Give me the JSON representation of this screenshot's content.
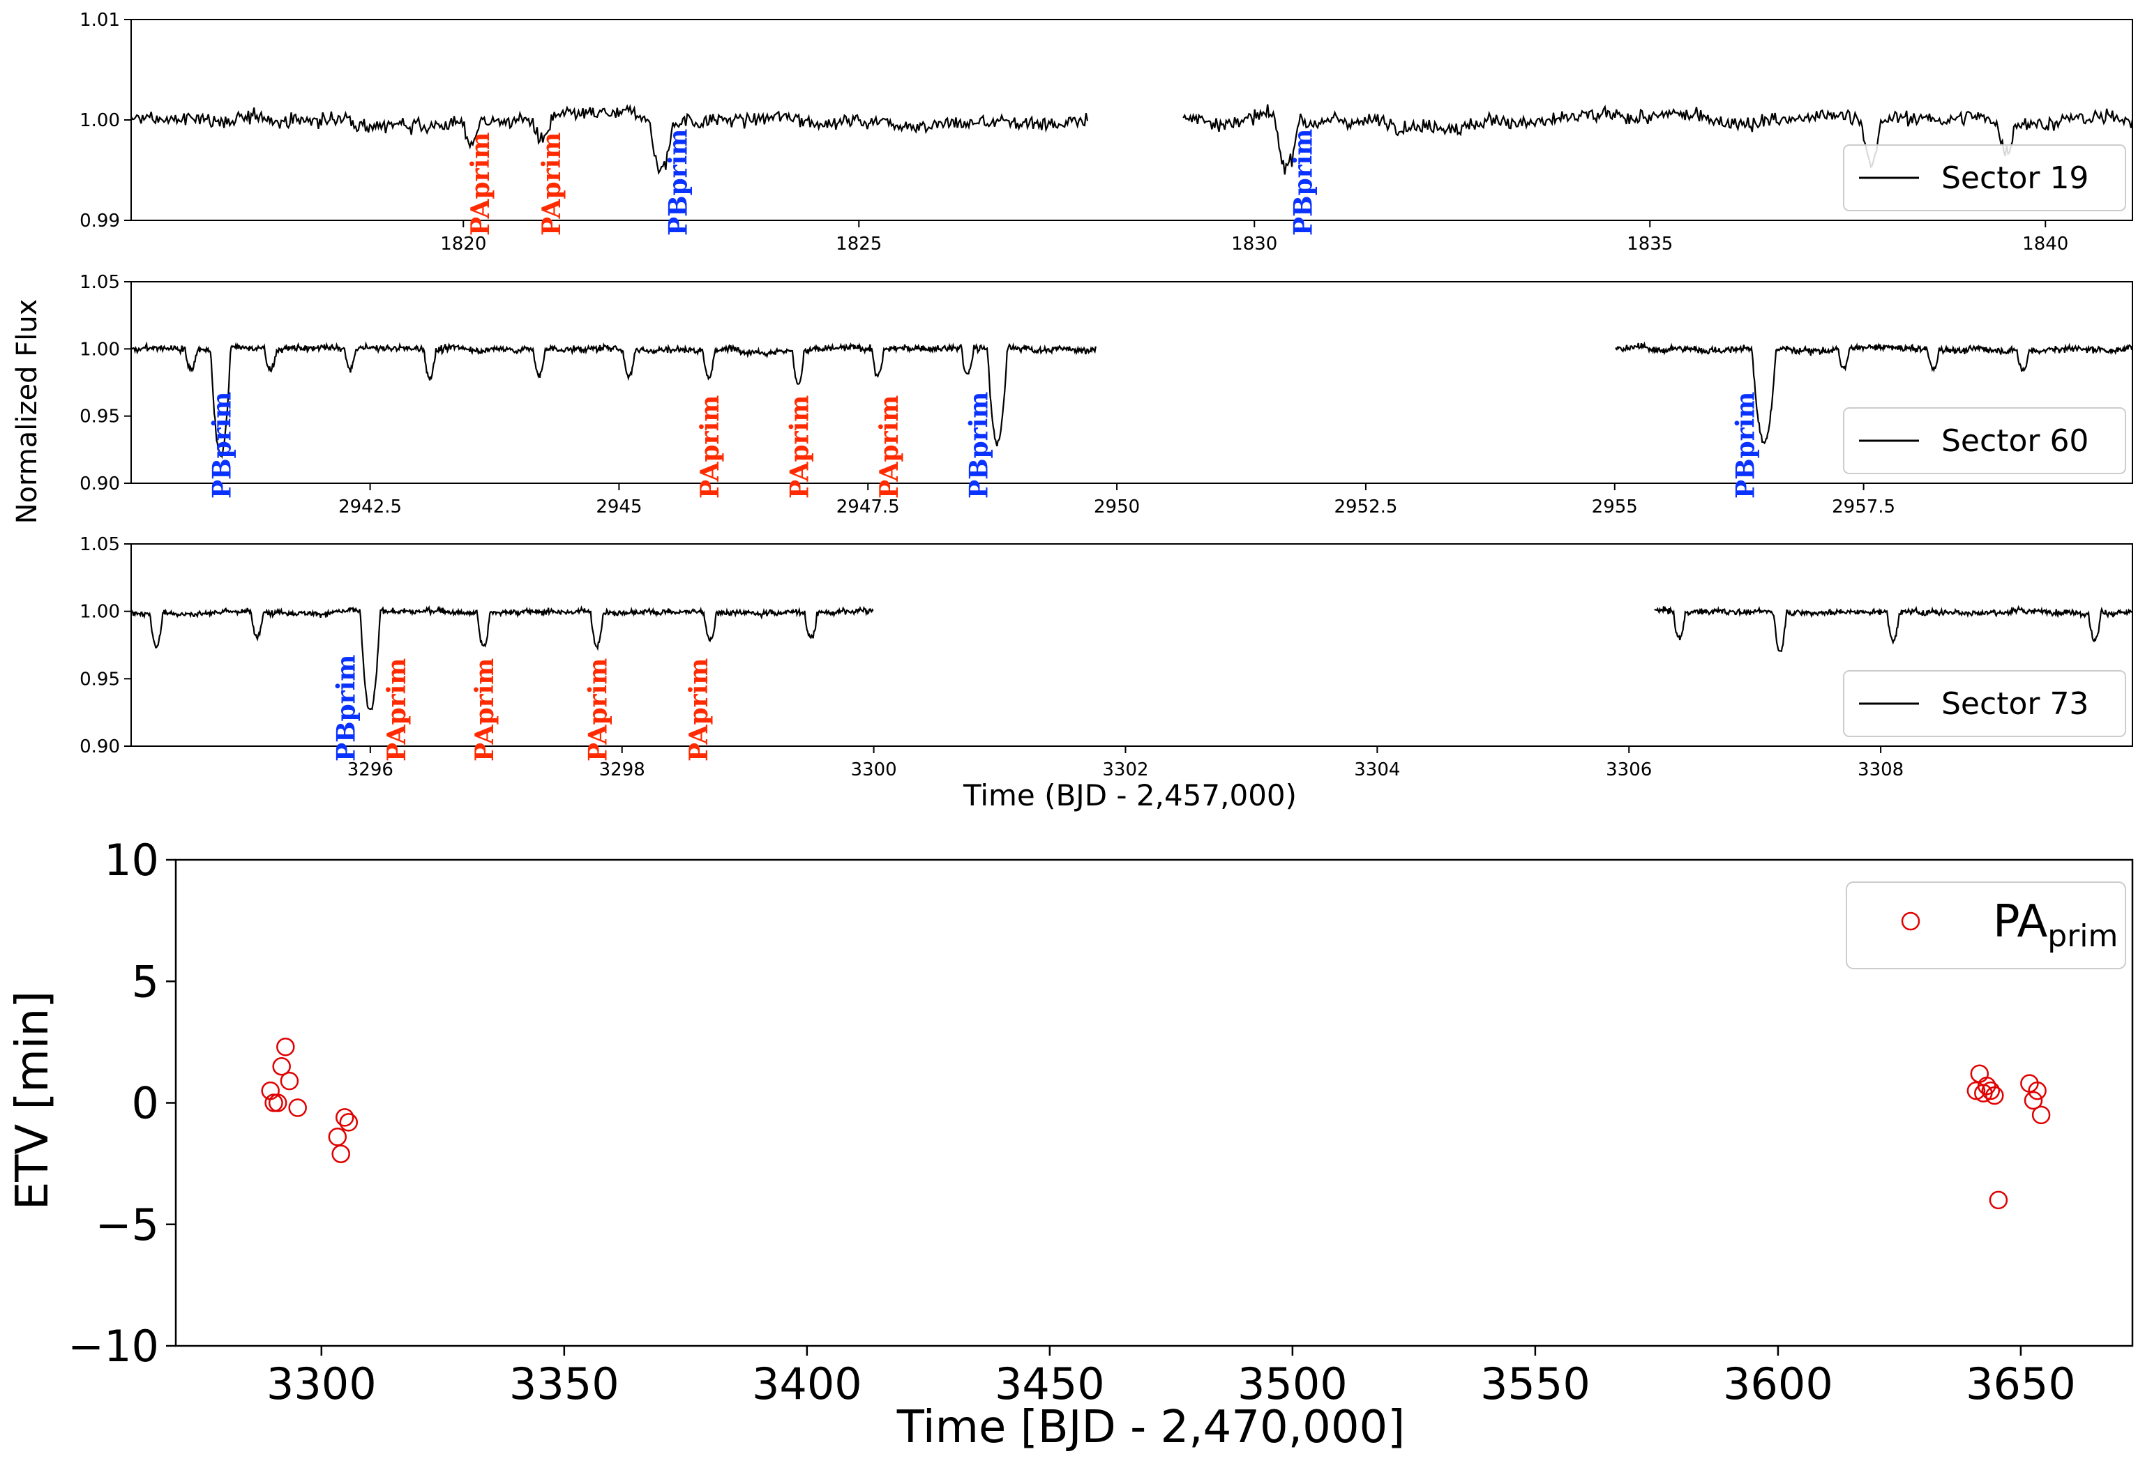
{
  "figure": {
    "shared_ylabel": "Normalized Flux",
    "shared_xlabel": "Time (BJD - 2,457,000)"
  },
  "colors": {
    "primary_a": "#ff2a00",
    "primary_b": "#0a32ff",
    "line": "#000000",
    "marker": "#e00000"
  },
  "chart_data": [
    {
      "type": "line",
      "legend": "Sector 19",
      "legend_position": "lower-right",
      "xlim": [
        1815.8,
        1841.1
      ],
      "ylim": [
        0.99,
        1.01
      ],
      "xticks": [
        1820,
        1825,
        1830,
        1835,
        1840
      ],
      "yticks": [
        "0.99",
        "1.00",
        "1.01"
      ],
      "gaps": [
        [
          1827.9,
          1829.1
        ]
      ],
      "dips": [
        {
          "t": 1820.1,
          "depth": 0.002,
          "w": 0.12
        },
        {
          "t": 1821.0,
          "depth": 0.002,
          "w": 0.12
        },
        {
          "t": 1822.5,
          "depth": 0.005,
          "w": 0.15
        },
        {
          "t": 1830.4,
          "depth": 0.005,
          "w": 0.15
        },
        {
          "t": 1837.8,
          "depth": 0.004,
          "w": 0.12
        },
        {
          "t": 1839.5,
          "depth": 0.003,
          "w": 0.12
        }
      ],
      "eclipse_labels": [
        {
          "text": "PAprim",
          "t": 1820.2,
          "kind": "primary_a"
        },
        {
          "text": "PAprim",
          "t": 1821.1,
          "kind": "primary_a"
        },
        {
          "text": "PBprim",
          "t": 1822.7,
          "kind": "primary_b"
        },
        {
          "text": "PBprim",
          "t": 1830.6,
          "kind": "primary_b"
        }
      ]
    },
    {
      "type": "line",
      "legend": "Sector 60",
      "legend_position": "lower-right",
      "xlim": [
        2940.1,
        2960.2
      ],
      "ylim": [
        0.9,
        1.05
      ],
      "xticks": [
        2942.5,
        2945.0,
        2947.5,
        2950.0,
        2952.5,
        2955.0,
        2957.5
      ],
      "yticks": [
        "0.90",
        "0.95",
        "1.00",
        "1.05"
      ],
      "gaps": [
        [
          2949.8,
          2955.0
        ]
      ],
      "dips": [
        {
          "t": 2940.7,
          "depth": 0.015,
          "w": 0.06
        },
        {
          "t": 2941.0,
          "depth": 0.08,
          "w": 0.1
        },
        {
          "t": 2941.5,
          "depth": 0.015,
          "w": 0.06
        },
        {
          "t": 2942.3,
          "depth": 0.015,
          "w": 0.06
        },
        {
          "t": 2943.1,
          "depth": 0.02,
          "w": 0.06
        },
        {
          "t": 2944.2,
          "depth": 0.02,
          "w": 0.06
        },
        {
          "t": 2945.1,
          "depth": 0.02,
          "w": 0.06
        },
        {
          "t": 2945.9,
          "depth": 0.02,
          "w": 0.06
        },
        {
          "t": 2946.8,
          "depth": 0.025,
          "w": 0.06
        },
        {
          "t": 2947.6,
          "depth": 0.02,
          "w": 0.06
        },
        {
          "t": 2948.5,
          "depth": 0.02,
          "w": 0.06
        },
        {
          "t": 2948.8,
          "depth": 0.07,
          "w": 0.1
        },
        {
          "t": 2956.5,
          "depth": 0.07,
          "w": 0.12
        },
        {
          "t": 2957.3,
          "depth": 0.015,
          "w": 0.06
        },
        {
          "t": 2958.2,
          "depth": 0.015,
          "w": 0.06
        },
        {
          "t": 2959.1,
          "depth": 0.015,
          "w": 0.06
        }
      ],
      "eclipse_labels": [
        {
          "text": "PBprim",
          "t": 2941.0,
          "kind": "primary_b"
        },
        {
          "text": "PAprim",
          "t": 2945.9,
          "kind": "primary_a"
        },
        {
          "text": "PAprim",
          "t": 2946.8,
          "kind": "primary_a"
        },
        {
          "text": "PAprim",
          "t": 2947.7,
          "kind": "primary_a"
        },
        {
          "text": "PBprim",
          "t": 2948.6,
          "kind": "primary_b"
        },
        {
          "text": "PBprim",
          "t": 2956.3,
          "kind": "primary_b"
        }
      ]
    },
    {
      "type": "line",
      "legend": "Sector 73",
      "legend_position": "lower-right",
      "xlim": [
        3294.1,
        3310.0
      ],
      "ylim": [
        0.9,
        1.05
      ],
      "xticks": [
        3296,
        3298,
        3300,
        3302,
        3304,
        3306,
        3308
      ],
      "yticks": [
        "0.90",
        "0.95",
        "1.00",
        "1.05"
      ],
      "gaps": [
        [
          3300.0,
          3306.2
        ]
      ],
      "dips": [
        {
          "t": 3294.3,
          "depth": 0.025,
          "w": 0.05
        },
        {
          "t": 3295.1,
          "depth": 0.02,
          "w": 0.05
        },
        {
          "t": 3296.0,
          "depth": 0.075,
          "w": 0.08
        },
        {
          "t": 3296.9,
          "depth": 0.025,
          "w": 0.05
        },
        {
          "t": 3297.8,
          "depth": 0.025,
          "w": 0.05
        },
        {
          "t": 3298.7,
          "depth": 0.02,
          "w": 0.05
        },
        {
          "t": 3299.5,
          "depth": 0.02,
          "w": 0.05
        },
        {
          "t": 3306.4,
          "depth": 0.02,
          "w": 0.05
        },
        {
          "t": 3307.2,
          "depth": 0.03,
          "w": 0.05
        },
        {
          "t": 3308.1,
          "depth": 0.02,
          "w": 0.05
        },
        {
          "t": 3309.7,
          "depth": 0.02,
          "w": 0.05
        }
      ],
      "eclipse_labels": [
        {
          "text": "PBprim",
          "t": 3295.8,
          "kind": "primary_b"
        },
        {
          "text": "PAprim",
          "t": 3296.2,
          "kind": "primary_a"
        },
        {
          "text": "PAprim",
          "t": 3296.9,
          "kind": "primary_a"
        },
        {
          "text": "PAprim",
          "t": 3297.8,
          "kind": "primary_a"
        },
        {
          "text": "PAprim",
          "t": 3298.6,
          "kind": "primary_a"
        }
      ]
    },
    {
      "type": "scatter",
      "title": "",
      "xlabel": "Time [BJD - 2,470,000]",
      "ylabel": "ETV [min]",
      "xlim": [
        3270,
        3673
      ],
      "ylim": [
        -10,
        10
      ],
      "xticks": [
        3300,
        3350,
        3400,
        3450,
        3500,
        3550,
        3600,
        3650
      ],
      "yticks": [
        10,
        5,
        0,
        -5,
        -10
      ],
      "ytick_labels": [
        "10",
        "5",
        "0",
        "−5",
        "−10"
      ],
      "legend": {
        "main": "PA",
        "sub": "prim",
        "position": "top-right"
      },
      "series": [
        {
          "name": "PAprim",
          "x": [
            3289.5,
            3290.2,
            3291.0,
            3291.8,
            3292.6,
            3293.4,
            3295.1,
            3303.3,
            3304.0,
            3304.8,
            3305.6,
            3640.8,
            3641.5,
            3642.3,
            3643.0,
            3643.8,
            3644.6,
            3645.4,
            3651.8,
            3652.6,
            3653.4,
            3654.2
          ],
          "y": [
            0.5,
            0.0,
            0.0,
            1.5,
            2.3,
            0.9,
            -0.2,
            -1.4,
            -2.1,
            -0.6,
            -0.8,
            0.5,
            1.2,
            0.4,
            0.7,
            0.5,
            0.3,
            -4.0,
            0.8,
            0.1,
            0.5,
            -0.5
          ]
        }
      ]
    }
  ]
}
